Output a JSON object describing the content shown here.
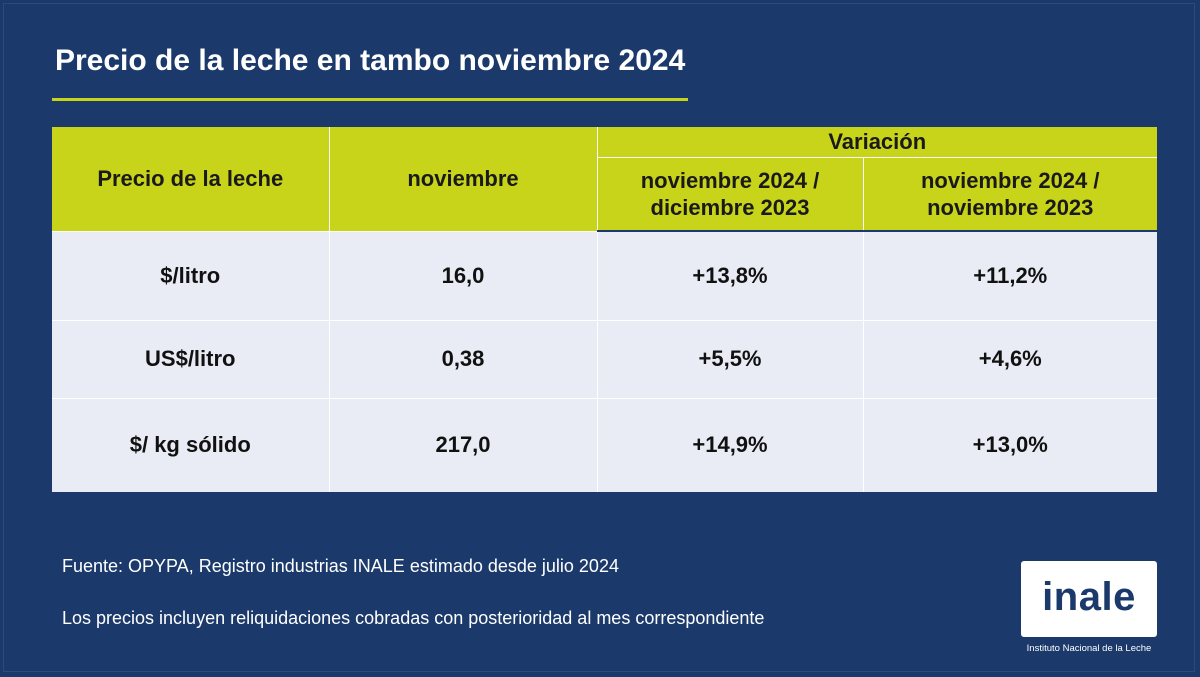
{
  "title": "Precio de la leche en tambo noviembre 2024",
  "colors": {
    "background": "#1b3a6b",
    "accent": "#c8d41a",
    "row_background": "#e9ecf4"
  },
  "table": {
    "col_label": "Precio de la leche",
    "col_month": "noviembre",
    "variation_label": "Variación",
    "var_col_1_line1": "noviembre 2024 /",
    "var_col_1_line2": "diciembre 2023",
    "var_col_2_line1": "noviembre 2024 /",
    "var_col_2_line2": "noviembre 2023",
    "rows": [
      {
        "label": "$/litro",
        "value": "16,0",
        "var1": "+13,8%",
        "var2": "+11,2%"
      },
      {
        "label": "US$/litro",
        "value": "0,38",
        "var1": "+5,5%",
        "var2": "+4,6%"
      },
      {
        "label": "$/ kg sólido",
        "value": "217,0",
        "var1": "+14,9%",
        "var2": "+13,0%"
      }
    ]
  },
  "footnotes": {
    "source": "Fuente: OPYPA, Registro industrias INALE estimado desde julio 2024",
    "note": "Los precios incluyen reliquidaciones cobradas con posterioridad al mes correspondiente"
  },
  "logo": {
    "name": "inale",
    "subtitle": "Instituto Nacional de la Leche"
  }
}
